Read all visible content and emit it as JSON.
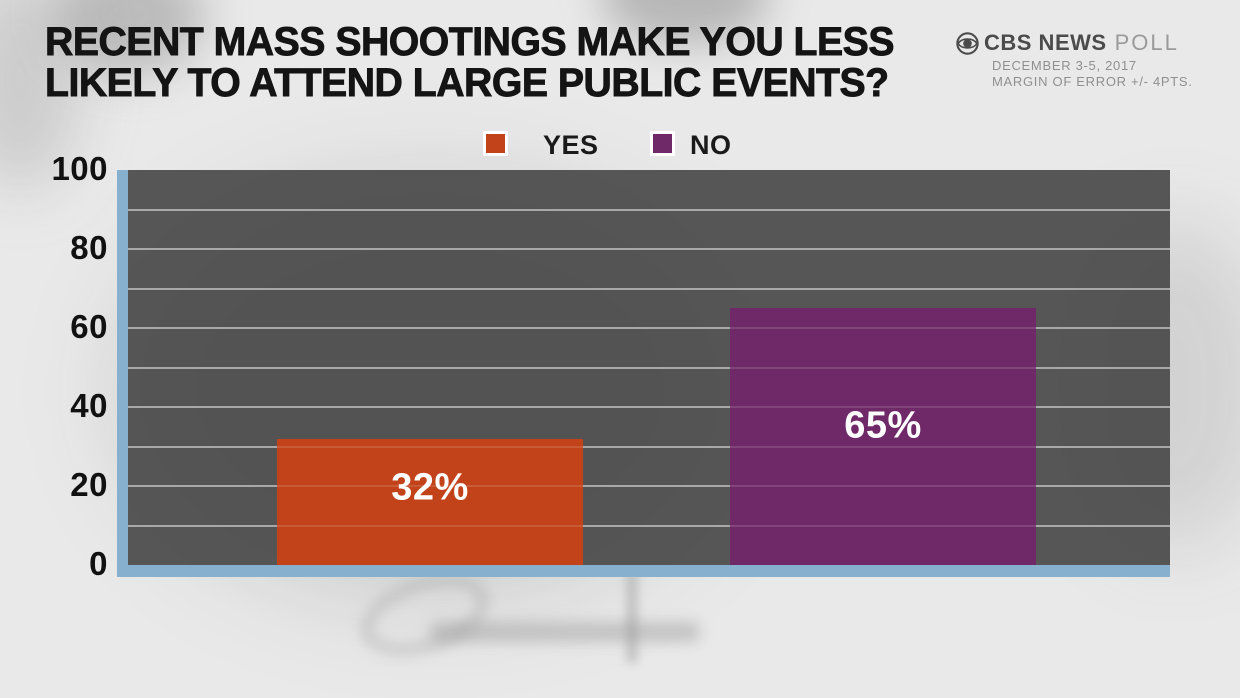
{
  "title": {
    "line1": "RECENT MASS SHOOTINGS MAKE YOU LESS",
    "line2": "LIKELY TO ATTEND LARGE PUBLIC EVENTS?"
  },
  "brand": {
    "network": "CBS NEWS",
    "product": "POLL",
    "date": "DECEMBER 3-5, 2017",
    "margin": "MARGIN OF ERROR +/- 4PTS."
  },
  "chart_data": {
    "type": "bar",
    "title": "RECENT MASS SHOOTINGS MAKE YOU LESS LIKELY TO ATTEND LARGE PUBLIC EVENTS?",
    "categories": [
      "YES",
      "NO"
    ],
    "values": [
      32,
      65
    ],
    "value_labels": [
      "32%",
      "65%"
    ],
    "colors": [
      "#c2421a",
      "#6f2968"
    ],
    "ylim": [
      0,
      100
    ],
    "yticks": [
      100,
      80,
      60,
      40,
      20,
      0
    ],
    "grid_step": 10,
    "grid": true,
    "legend": [
      {
        "label": "YES",
        "color": "#c2421a"
      },
      {
        "label": "NO",
        "color": "#6f2968"
      }
    ],
    "legend_position": "top-center",
    "axis_color": "#87b0cf",
    "plot_background": "#565656",
    "source": "CBS NEWS POLL",
    "annotations": [
      "DECEMBER 3-5, 2017",
      "MARGIN OF ERROR +/- 4PTS."
    ]
  }
}
